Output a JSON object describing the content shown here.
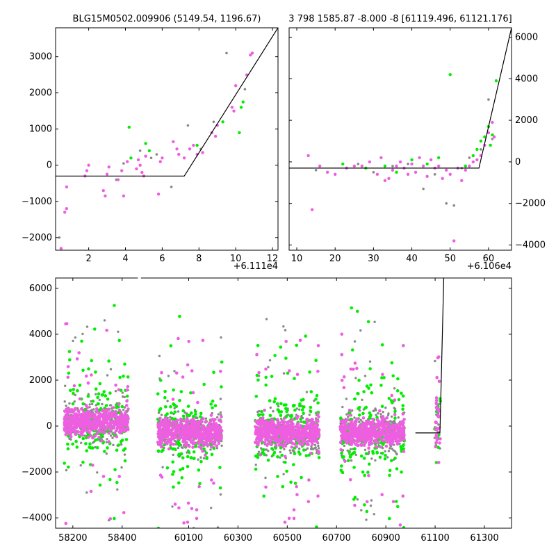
{
  "chart_data": [
    {
      "id": "zoom-left",
      "type": "scatter",
      "title": "BLG15M0502.009906 (5149.54, 1196.67)",
      "x_offset_label": "+6.111e4",
      "xlim": [
        0.2,
        12.3
      ],
      "ylim": [
        -2350,
        3800
      ],
      "xticks": [
        2,
        4,
        6,
        8,
        10,
        12
      ],
      "yticks": [
        -2000,
        -1000,
        0,
        1000,
        2000,
        3000
      ],
      "ytick_side": "left",
      "model": {
        "x": [
          0.2,
          7.2,
          12.3
        ],
        "y": [
          -300,
          -300,
          3800
        ]
      },
      "series": [
        {
          "name": "magenta",
          "color": "#ee5ee0",
          "points": [
            [
              0.5,
              -2300
            ],
            [
              0.7,
              -1300
            ],
            [
              0.8,
              -1200
            ],
            [
              0.8,
              -600
            ],
            [
              1.8,
              -300
            ],
            [
              1.9,
              -150
            ],
            [
              2.0,
              0
            ],
            [
              2.8,
              -700
            ],
            [
              2.9,
              -850
            ],
            [
              3.0,
              -250
            ],
            [
              3.1,
              -50
            ],
            [
              3.6,
              -400
            ],
            [
              3.8,
              -150
            ],
            [
              3.9,
              -850
            ],
            [
              4.1,
              100
            ],
            [
              4.6,
              -100
            ],
            [
              4.7,
              150
            ],
            [
              4.8,
              0
            ],
            [
              4.9,
              -200
            ],
            [
              5.0,
              -300
            ],
            [
              5.1,
              250
            ],
            [
              5.8,
              -800
            ],
            [
              5.9,
              100
            ],
            [
              6.0,
              200
            ],
            [
              6.6,
              650
            ],
            [
              6.8,
              450
            ],
            [
              6.9,
              300
            ],
            [
              7.2,
              200
            ],
            [
              7.5,
              450
            ],
            [
              7.7,
              550
            ],
            [
              7.9,
              300
            ],
            [
              8.2,
              350
            ],
            [
              8.7,
              900
            ],
            [
              8.9,
              800
            ],
            [
              9.0,
              1100
            ],
            [
              9.8,
              1600
            ],
            [
              9.9,
              1500
            ],
            [
              10.0,
              2200
            ],
            [
              10.6,
              2500
            ],
            [
              10.8,
              3050
            ],
            [
              10.9,
              3100
            ]
          ]
        },
        {
          "name": "green",
          "color": "#00ee00",
          "points": [
            [
              4.2,
              1050
            ],
            [
              4.3,
              200
            ],
            [
              5.1,
              600
            ],
            [
              5.3,
              400
            ],
            [
              7.9,
              550
            ],
            [
              9.3,
              1200
            ],
            [
              10.2,
              900
            ],
            [
              10.3,
              1600
            ],
            [
              10.4,
              1750
            ]
          ]
        },
        {
          "name": "gray",
          "color": "#888888",
          "points": [
            [
              0.4,
              -2000
            ],
            [
              3.5,
              -400
            ],
            [
              3.9,
              50
            ],
            [
              4.8,
              400
            ],
            [
              5.4,
              200
            ],
            [
              5.7,
              300
            ],
            [
              6.5,
              -600
            ],
            [
              7.4,
              1100
            ],
            [
              8.1,
              450
            ],
            [
              8.8,
              1200
            ],
            [
              9.5,
              3100
            ],
            [
              10.5,
              2100
            ]
          ]
        }
      ]
    },
    {
      "id": "zoom-right",
      "type": "scatter",
      "title": "3 798 1585.87 -8.000 -8 [61119.496, 61121.176]",
      "x_offset_label": "+6.106e4",
      "xlim": [
        8,
        66
      ],
      "ylim": [
        -4250,
        6450
      ],
      "xticks": [
        10,
        20,
        30,
        40,
        50,
        60
      ],
      "yticks": [
        -4000,
        -2000,
        0,
        2000,
        4000,
        6000
      ],
      "ytick_side": "right",
      "model": {
        "x": [
          8,
          57.5,
          66
        ],
        "y": [
          -300,
          -300,
          6450
        ]
      },
      "series": [
        {
          "name": "magenta",
          "color": "#ee5ee0",
          "points": [
            [
              13,
              300
            ],
            [
              14,
              -2300
            ],
            [
              16,
              -200
            ],
            [
              18,
              -500
            ],
            [
              20,
              -600
            ],
            [
              23,
              -300
            ],
            [
              25,
              -200
            ],
            [
              27,
              -200
            ],
            [
              29,
              0
            ],
            [
              31,
              -600
            ],
            [
              32,
              200
            ],
            [
              33,
              -900
            ],
            [
              34,
              -800
            ],
            [
              35,
              -400
            ],
            [
              36,
              -200
            ],
            [
              37,
              0
            ],
            [
              38,
              -300
            ],
            [
              39,
              -600
            ],
            [
              40,
              -100
            ],
            [
              41,
              -500
            ],
            [
              42,
              200
            ],
            [
              43,
              -200
            ],
            [
              44,
              -700
            ],
            [
              45,
              100
            ],
            [
              46,
              -300
            ],
            [
              47,
              -200
            ],
            [
              48,
              -800
            ],
            [
              49,
              -400
            ],
            [
              50,
              -600
            ],
            [
              51,
              -3800
            ],
            [
              52,
              -300
            ],
            [
              53,
              -900
            ],
            [
              54,
              -400
            ],
            [
              55,
              -200
            ],
            [
              56,
              0
            ],
            [
              57,
              100
            ],
            [
              58,
              300
            ],
            [
              59,
              800
            ],
            [
              60,
              1400
            ],
            [
              61,
              1900
            ],
            [
              61.5,
              1200
            ]
          ]
        },
        {
          "name": "green",
          "color": "#00ee00",
          "points": [
            [
              22,
              -100
            ],
            [
              28,
              -300
            ],
            [
              33,
              -200
            ],
            [
              36,
              -500
            ],
            [
              40,
              100
            ],
            [
              44,
              -100
            ],
            [
              47,
              200
            ],
            [
              50,
              4200
            ],
            [
              54,
              -200
            ],
            [
              56,
              300
            ],
            [
              57,
              600
            ],
            [
              58,
              1000
            ],
            [
              59,
              1200
            ],
            [
              60,
              1700
            ],
            [
              60.5,
              800
            ],
            [
              61,
              1300
            ],
            [
              62,
              3900
            ]
          ]
        },
        {
          "name": "gray",
          "color": "#888888",
          "points": [
            [
              15,
              -400
            ],
            [
              26,
              -100
            ],
            [
              30,
              -500
            ],
            [
              35,
              -200
            ],
            [
              39,
              -100
            ],
            [
              43,
              -1300
            ],
            [
              46,
              -600
            ],
            [
              49,
              -2000
            ],
            [
              51,
              -2100
            ],
            [
              53,
              -300
            ],
            [
              55,
              200
            ],
            [
              58,
              600
            ],
            [
              60,
              3000
            ],
            [
              61,
              1100
            ]
          ]
        }
      ]
    },
    {
      "id": "full-lightcurve",
      "type": "scatter",
      "title": "",
      "xlim": [
        58130,
        61410
      ],
      "ylim": [
        -4450,
        6450
      ],
      "xticks": [
        58200,
        58400,
        60100,
        60300,
        60500,
        60700,
        60900,
        61100,
        61300
      ],
      "yticks": [
        -4000,
        -2000,
        0,
        2000,
        4000,
        6000
      ],
      "ytick_side": "left",
      "break": {
        "from": 58470,
        "to": 59900
      },
      "model": {
        "x": [
          61020,
          61119.5,
          61135
        ],
        "y": [
          -300,
          -300,
          6450
        ]
      },
      "seasons": [
        {
          "center": 58295,
          "halfwidth": 130,
          "baseline": 200
        },
        {
          "center": 60105,
          "halfwidth": 130,
          "baseline": -250
        },
        {
          "center": 60500,
          "halfwidth": 130,
          "baseline": -250
        },
        {
          "center": 60845,
          "halfwidth": 130,
          "baseline": -250
        },
        {
          "center": 61110,
          "halfwidth": 12,
          "baseline": -300
        }
      ],
      "series": [
        {
          "name": "gray",
          "color": "#888888"
        },
        {
          "name": "green",
          "color": "#00ee00"
        },
        {
          "name": "magenta",
          "color": "#ee5ee0"
        }
      ]
    }
  ]
}
